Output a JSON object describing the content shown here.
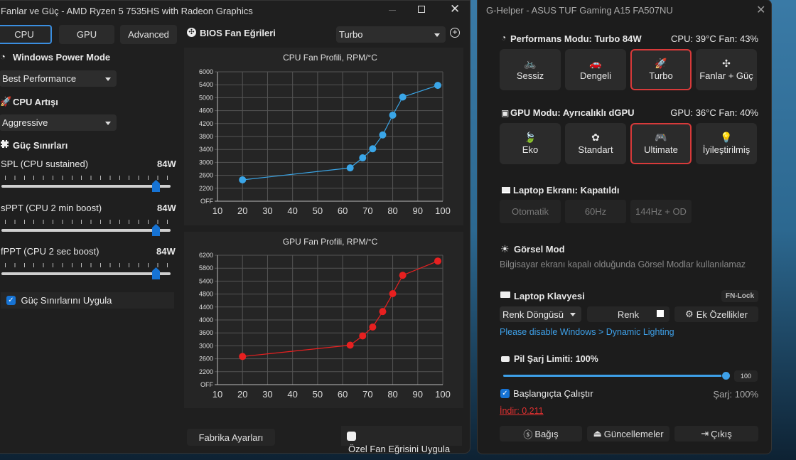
{
  "fans_window": {
    "title": "Fanlar ve Güç - AMD Ryzen 5 7535HS with Radeon Graphics",
    "tabs": [
      "CPU",
      "GPU",
      "Advanced"
    ],
    "windows_power_mode": {
      "label": "Windows Power Mode",
      "value": "Best Performance"
    },
    "cpu_boost": {
      "label": "CPU Artışı",
      "value": "Aggressive"
    },
    "power_limits": {
      "label": "Güç Sınırları",
      "sliders": [
        {
          "label": "SPL (CPU sustained)",
          "value": "84W"
        },
        {
          "label": "sPPT (CPU 2 min boost)",
          "value": "84W"
        },
        {
          "label": "fPPT (CPU 2 sec boost)",
          "value": "84W"
        }
      ],
      "apply_label": "Güç Sınırlarını Uygula",
      "apply_checked": true
    },
    "bios_curves_label": "BIOS Fan Eğrileri",
    "profile_value": "Turbo",
    "factory_button": "Fabrika Ayarları",
    "custom_curve_label": "Özel Fan Eğrisini Uygula",
    "custom_curve_checked": false
  },
  "chart_data": [
    {
      "type": "line",
      "title": "CPU Fan Profili, RPM/°C",
      "color": "#3aa6e8",
      "x_ticks": [
        10,
        20,
        30,
        40,
        50,
        60,
        70,
        80,
        90,
        100
      ],
      "y_ticks": [
        "OFF",
        "2200",
        "2600",
        "3000",
        "3400",
        "3800",
        "4200",
        "4600",
        "5000",
        "5400",
        "6000"
      ],
      "x": [
        20,
        63,
        68,
        72,
        76,
        80,
        84,
        98
      ],
      "y": [
        2460,
        2830,
        3140,
        3420,
        3850,
        4460,
        5020,
        5380
      ],
      "xlim": [
        10,
        100
      ],
      "grid": true
    },
    {
      "type": "line",
      "title": "GPU Fan Profili, RPM/°C",
      "color": "#e82020",
      "x_ticks": [
        10,
        20,
        30,
        40,
        50,
        60,
        70,
        80,
        90,
        100
      ],
      "y_ticks": [
        "OFF",
        "2200",
        "2600",
        "3000",
        "3600",
        "4000",
        "4400",
        "4800",
        "5400",
        "5800",
        "6200"
      ],
      "x": [
        20,
        63,
        68,
        72,
        76,
        80,
        84,
        98
      ],
      "y": [
        2670,
        3030,
        3460,
        3780,
        4260,
        4820,
        5580,
        6020
      ],
      "xlim": [
        10,
        100
      ],
      "grid": true
    }
  ],
  "ghelper": {
    "title": "G-Helper - ASUS TUF Gaming A15 FA507NU",
    "perf": {
      "label": "Performans Modu: Turbo 84W",
      "status": "CPU: 39°C Fan: 43%",
      "modes": [
        "Sessiz",
        "Dengeli",
        "Turbo",
        "Fanlar + Güç"
      ],
      "active": "Turbo"
    },
    "gpu": {
      "label": "GPU Modu: Ayrıcalıklı dGPU",
      "status": "GPU: 36°C Fan: 40%",
      "modes": [
        "Eko",
        "Standart",
        "Ultimate",
        "İyileştirilmiş"
      ],
      "active": "Ultimate"
    },
    "screen": {
      "label": "Laptop Ekranı: Kapatıldı",
      "modes": [
        "Otomatik",
        "60Hz",
        "144Hz + OD"
      ]
    },
    "visual": {
      "label": "Görsel Mod",
      "note": "Bilgisayar ekranı kapalı olduğunda Görsel Modlar kullanılamaz"
    },
    "keyboard": {
      "label": "Laptop Klavyesi",
      "fn_lock": "FN-Lock",
      "mode": "Renk Döngüsü",
      "color_label": "Renk",
      "color": "#ffffff",
      "extra": "Ek Özellikler",
      "link": "Please disable Windows > Dynamic Lighting"
    },
    "battery": {
      "label": "Pil Şarj Limiti: 100%",
      "value": "100",
      "percent": 100,
      "charge": "Şarj: 100%"
    },
    "startup": {
      "label": "Başlangıçta Çalıştır",
      "checked": true
    },
    "download": "İndir: 0.211",
    "footer": [
      "Bağış",
      "Güncellemeler",
      "Çıkış"
    ]
  }
}
